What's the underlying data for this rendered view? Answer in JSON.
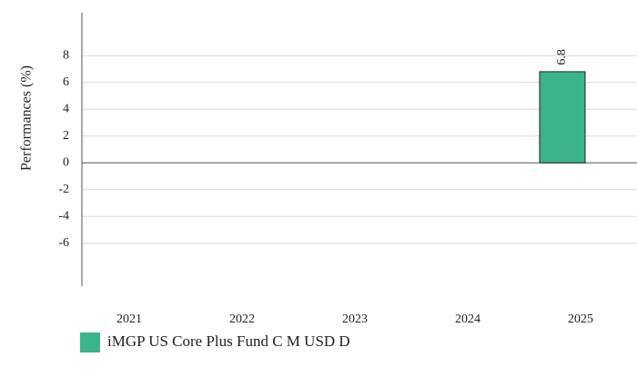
{
  "chart_data": {
    "type": "bar",
    "y_axis_label": "Performances (%)",
    "categories": [
      "2021",
      "2022",
      "2023",
      "2024",
      "2025"
    ],
    "series": [
      {
        "name": "iMGP US Core Plus Fund  C M USD D",
        "color": "#3bb38d",
        "values": [
          null,
          null,
          null,
          null,
          6.8
        ]
      }
    ],
    "ylim": [
      -9.2,
      11.2
    ],
    "yticks": [
      -6,
      -4,
      -2,
      0,
      2,
      4,
      6,
      8
    ],
    "grid": true
  }
}
